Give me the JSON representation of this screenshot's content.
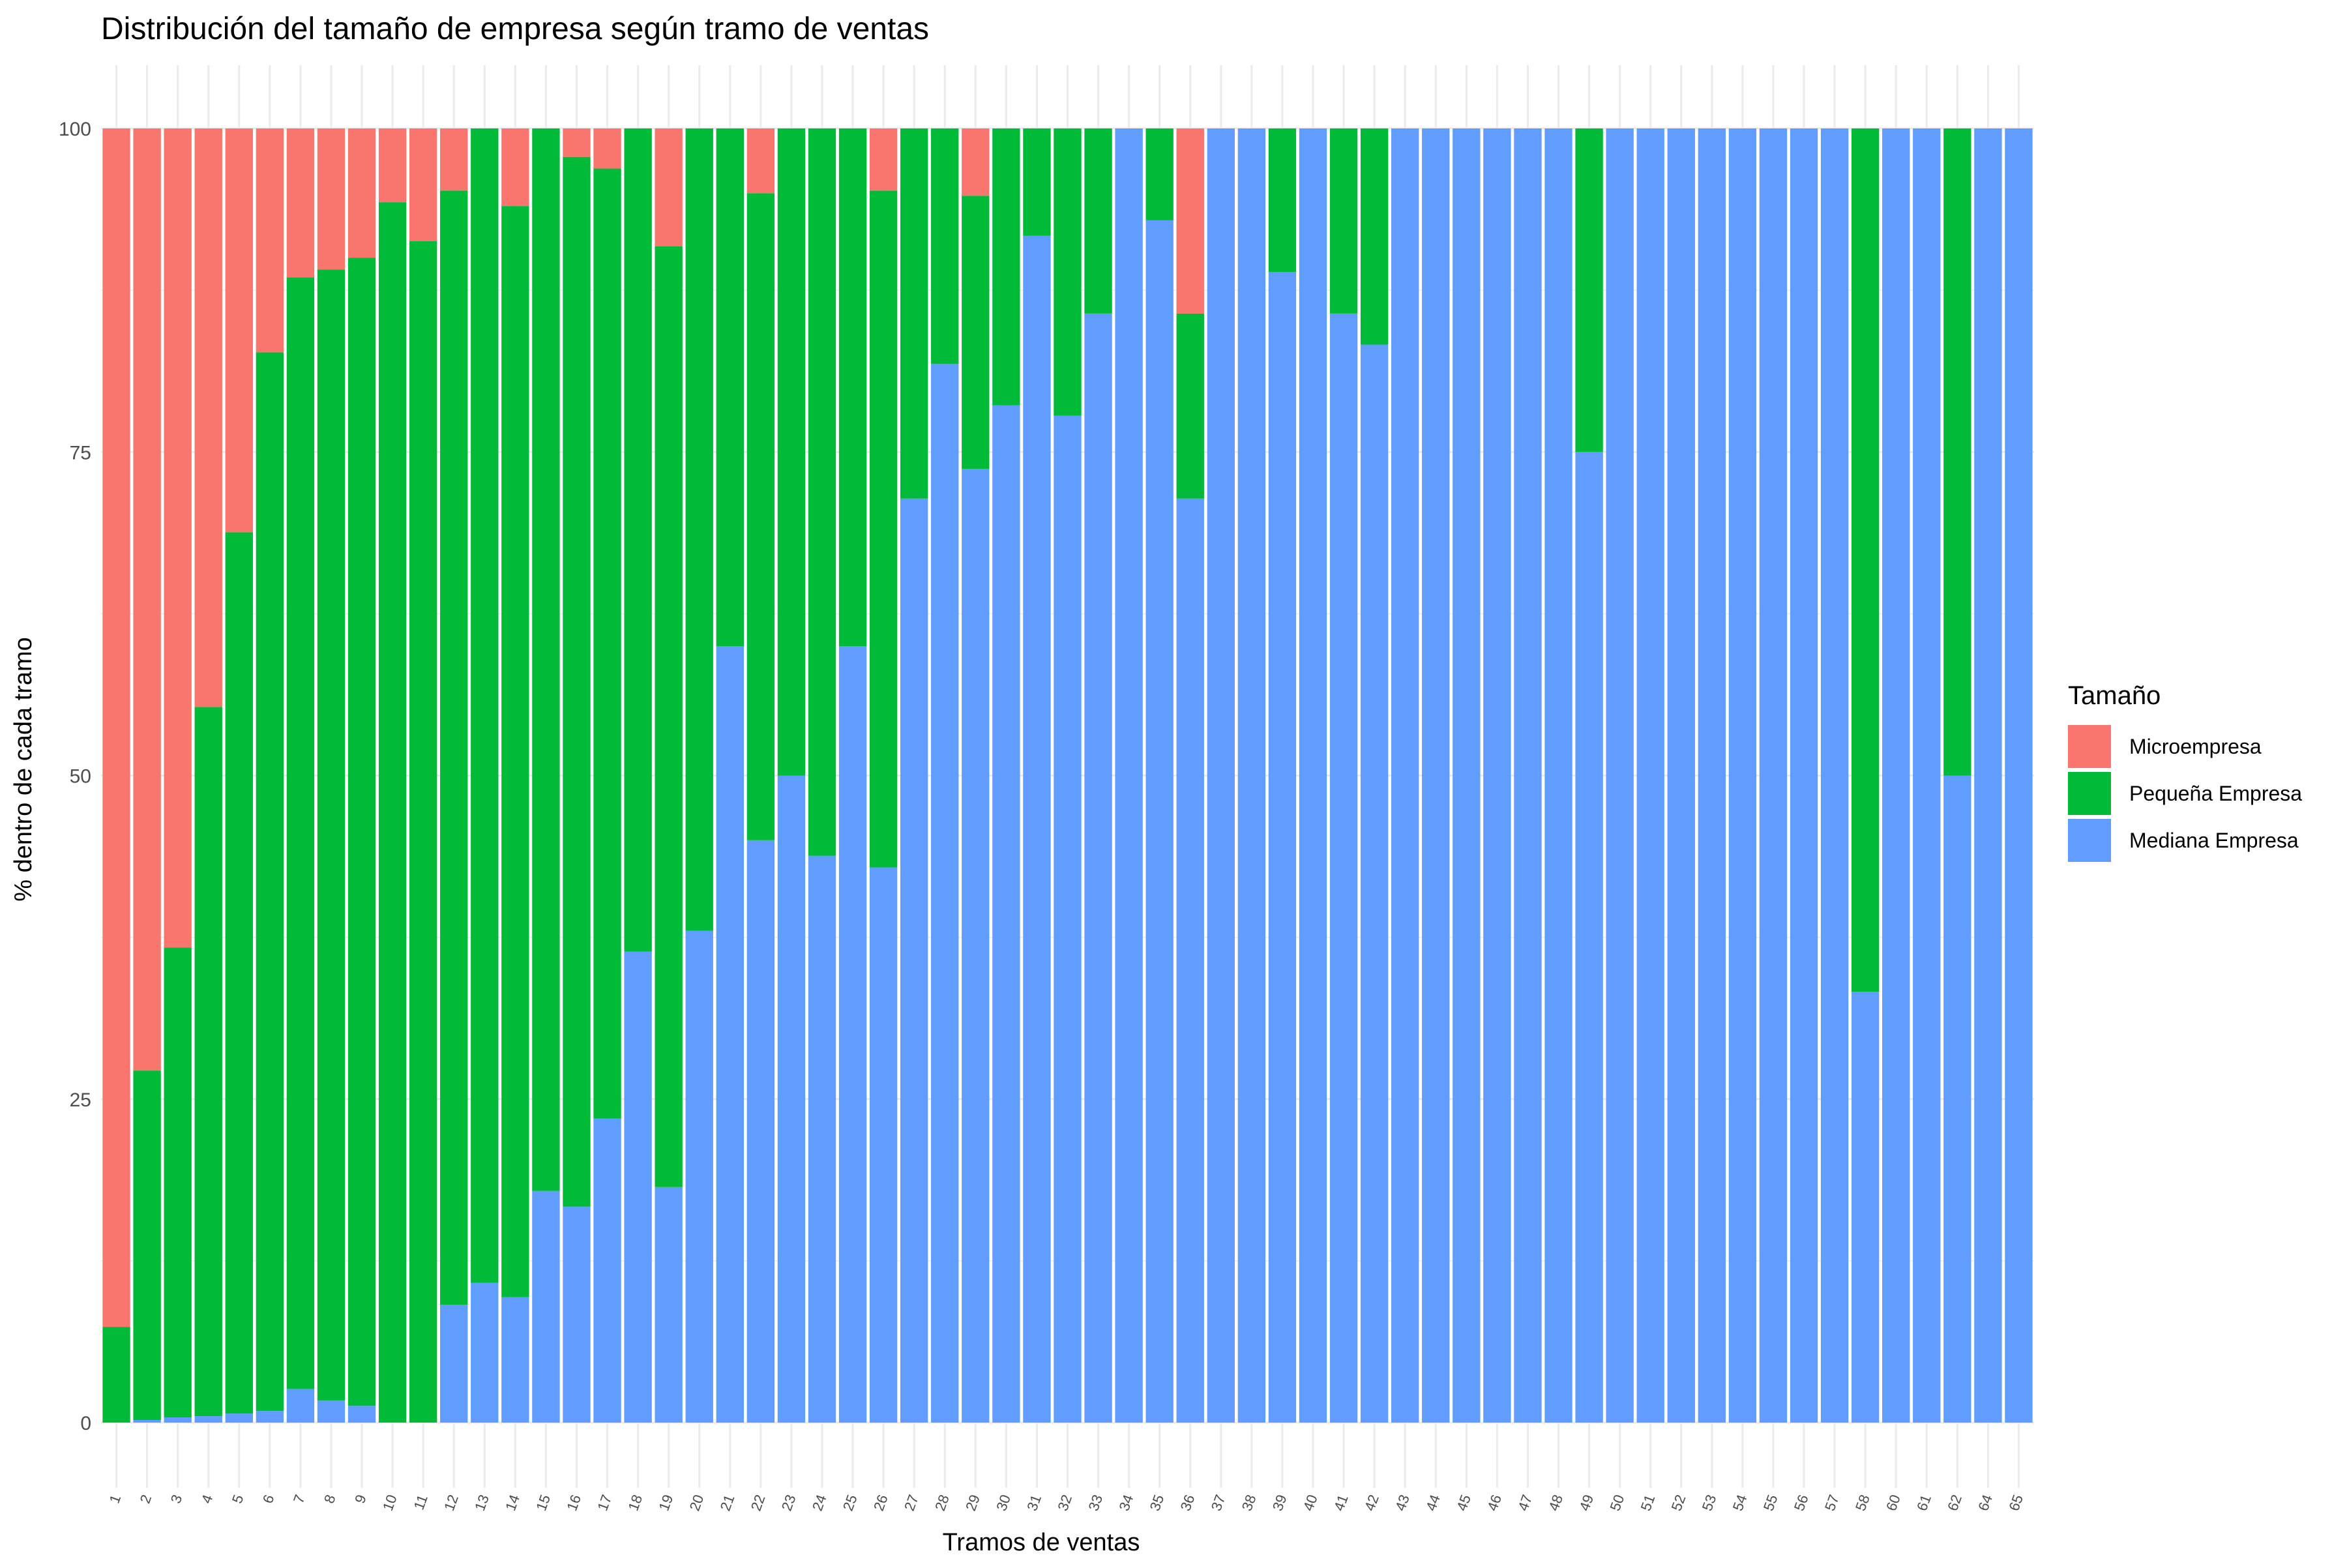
{
  "colors": {
    "micro": "#F8766D",
    "pequena": "#00BA38",
    "mediana": "#619CFF",
    "grid": "#EBEBEB",
    "text": "#000000",
    "axis_text": "#4D4D4D"
  },
  "chart_data": {
    "type": "bar",
    "stacked": true,
    "title": "Distribución del tamaño de empresa según tramo de ventas",
    "xlabel": "Tramos de ventas",
    "ylabel": "% dentro de cada tramo",
    "ylim": [
      0,
      100
    ],
    "yticks": [
      0,
      25,
      50,
      75,
      100
    ],
    "grid": true,
    "legend_position": "right",
    "legend_title": "Tamaño",
    "categories": [
      "1",
      "2",
      "3",
      "4",
      "5",
      "6",
      "7",
      "8",
      "9",
      "10",
      "11",
      "12",
      "13",
      "14",
      "15",
      "16",
      "17",
      "18",
      "19",
      "20",
      "21",
      "22",
      "23",
      "24",
      "25",
      "26",
      "27",
      "28",
      "29",
      "30",
      "31",
      "32",
      "33",
      "34",
      "35",
      "36",
      "37",
      "38",
      "39",
      "40",
      "41",
      "42",
      "43",
      "44",
      "45",
      "46",
      "47",
      "48",
      "49",
      "50",
      "51",
      "52",
      "53",
      "54",
      "55",
      "56",
      "57",
      "58",
      "60",
      "61",
      "62",
      "64",
      "65"
    ],
    "series": [
      {
        "name": "Mediana Empresa",
        "key": "mediana",
        "values": [
          0,
          0.2,
          0.4,
          0.5,
          0.7,
          0.9,
          2.6,
          1.7,
          1.3,
          0,
          0,
          9.1,
          10.8,
          9.7,
          17.9,
          16.7,
          23.5,
          36.4,
          18.2,
          38.0,
          60.0,
          45.0,
          50.0,
          43.8,
          60.0,
          42.9,
          71.4,
          81.8,
          73.7,
          78.6,
          91.7,
          77.8,
          85.7,
          100,
          92.9,
          71.4,
          100,
          100,
          88.9,
          100,
          85.7,
          83.3,
          100,
          100,
          100,
          100,
          100,
          100,
          75.0,
          100,
          100,
          100,
          100,
          100,
          100,
          100,
          100,
          33.3,
          100,
          100,
          50.0,
          100,
          100
        ]
      },
      {
        "name": "Pequeña Empresa",
        "key": "pequena",
        "values": [
          7.4,
          27.0,
          36.3,
          54.8,
          68.1,
          81.8,
          85.9,
          87.4,
          88.7,
          94.3,
          91.3,
          86.1,
          89.2,
          84.3,
          82.1,
          81.1,
          73.4,
          63.6,
          72.7,
          62.0,
          40.0,
          50.0,
          50.0,
          56.2,
          40.0,
          52.3,
          28.6,
          18.2,
          21.1,
          21.4,
          8.3,
          22.2,
          14.3,
          0,
          7.1,
          14.3,
          0,
          0,
          11.1,
          0,
          14.3,
          16.7,
          0,
          0,
          0,
          0,
          0,
          0,
          25.0,
          0,
          0,
          0,
          0,
          0,
          0,
          0,
          0,
          66.7,
          0,
          0,
          50.0,
          0,
          0
        ]
      },
      {
        "name": "Microempresa",
        "key": "micro",
        "values": [
          92.6,
          72.8,
          63.3,
          44.7,
          31.2,
          17.3,
          11.5,
          10.9,
          10.0,
          5.7,
          8.7,
          4.8,
          0,
          6.0,
          0,
          2.2,
          3.1,
          0,
          9.1,
          0,
          0,
          5.0,
          0,
          0,
          0,
          4.8,
          0,
          0,
          5.2,
          0,
          0,
          0,
          0,
          0,
          0,
          14.3,
          0,
          0,
          0,
          0,
          0,
          0,
          0,
          0,
          0,
          0,
          0,
          0,
          0,
          0,
          0,
          0,
          0,
          0,
          0,
          0,
          0,
          0,
          0,
          0,
          0,
          0,
          0
        ]
      }
    ],
    "legend_order": [
      "Microempresa",
      "Pequeña Empresa",
      "Mediana Empresa"
    ]
  }
}
